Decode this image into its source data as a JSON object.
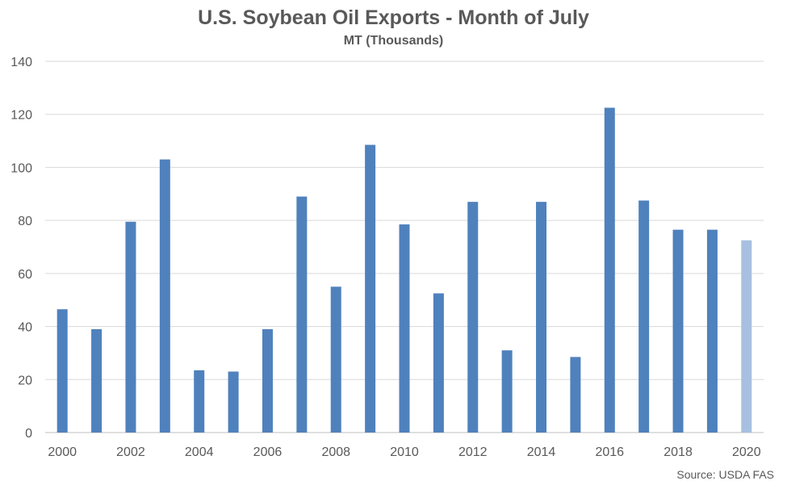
{
  "chart_data": {
    "type": "bar",
    "title": "U.S. Soybean Oil Exports - Month of July",
    "subtitle": "MT (Thousands)",
    "source": "Source: USDA FAS",
    "categories": [
      "2000",
      "2001",
      "2002",
      "2003",
      "2004",
      "2005",
      "2006",
      "2007",
      "2008",
      "2009",
      "2010",
      "2011",
      "2012",
      "2013",
      "2014",
      "2015",
      "2016",
      "2017",
      "2018",
      "2019",
      "2020"
    ],
    "x_tick_labels": [
      "2000",
      "2002",
      "2004",
      "2006",
      "2008",
      "2010",
      "2012",
      "2014",
      "2016",
      "2018",
      "2020"
    ],
    "values": [
      46.5,
      39,
      79.5,
      103,
      23.5,
      23,
      39,
      89,
      55,
      108.5,
      78.5,
      52.5,
      87,
      31,
      87,
      28.5,
      122.5,
      87.5,
      76.5,
      76.5,
      72.5
    ],
    "ylim": [
      0,
      140
    ],
    "y_ticks": [
      0,
      20,
      40,
      60,
      80,
      100,
      120,
      140
    ],
    "grid": true,
    "legend": "none",
    "colors": {
      "bar": "#4f81bd",
      "highlight_bar": "#a7c0e1"
    },
    "highlight_category": "2020"
  }
}
